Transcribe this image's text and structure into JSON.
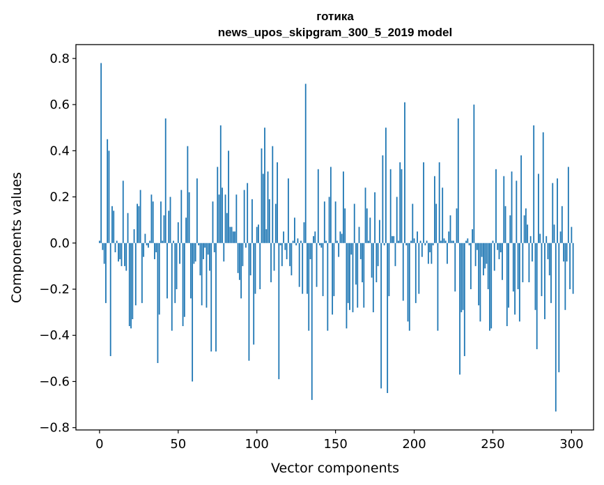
{
  "chart_data": {
    "type": "bar",
    "title_line1": "готика",
    "title_line2": "news_upos_skipgram_300_5_2019 model",
    "xlabel": "Vector components",
    "ylabel": "Components values",
    "xlim": [
      -15,
      314
    ],
    "ylim": [
      -0.81,
      0.86
    ],
    "x_ticks": [
      0,
      50,
      100,
      150,
      200,
      250,
      300
    ],
    "y_ticks": [
      -0.8,
      -0.6,
      -0.4,
      -0.2,
      0.0,
      0.2,
      0.4,
      0.6,
      0.8
    ],
    "x_tick_labels": [
      "0",
      "50",
      "100",
      "150",
      "200",
      "250",
      "300"
    ],
    "y_tick_labels": [
      "−0.8",
      "−0.6",
      "−0.4",
      "−0.2",
      "0.0",
      "0.2",
      "0.4",
      "0.6",
      "0.8"
    ],
    "bar_color": "#1f77b4",
    "grid": false,
    "values": [
      0.01,
      0.78,
      -0.03,
      -0.09,
      -0.26,
      0.45,
      0.4,
      -0.49,
      0.16,
      0.14,
      -0.04,
      0.01,
      -0.08,
      -0.07,
      -0.1,
      0.27,
      -0.1,
      -0.12,
      0.13,
      -0.36,
      -0.37,
      -0.33,
      0.06,
      -0.27,
      0.17,
      0.16,
      0.23,
      -0.26,
      -0.06,
      0.04,
      -0.01,
      -0.02,
      0.01,
      0.21,
      0.18,
      -0.07,
      -0.04,
      -0.52,
      -0.31,
      0.18,
      0.01,
      0.12,
      0.54,
      -0.24,
      0.14,
      0.2,
      -0.38,
      0.01,
      -0.26,
      -0.2,
      0.09,
      -0.09,
      0.23,
      -0.36,
      -0.32,
      0.11,
      0.42,
      0.22,
      -0.24,
      -0.6,
      -0.09,
      -0.08,
      0.28,
      -0.01,
      -0.14,
      -0.27,
      -0.07,
      -0.02,
      -0.28,
      -0.05,
      -0.12,
      -0.47,
      0.18,
      -0.04,
      -0.47,
      0.33,
      0.21,
      0.51,
      0.24,
      -0.08,
      0.21,
      0.13,
      0.4,
      0.07,
      0.07,
      0.05,
      0.05,
      0.21,
      -0.13,
      -0.16,
      -0.24,
      -0.1,
      0.23,
      -0.02,
      0.26,
      -0.51,
      -0.14,
      0.19,
      -0.44,
      -0.22,
      0.07,
      0.08,
      -0.2,
      0.41,
      0.3,
      0.5,
      0.06,
      0.31,
      0.19,
      -0.17,
      0.42,
      -0.12,
      0.17,
      0.35,
      -0.59,
      -0.01,
      -0.1,
      0.05,
      -0.03,
      -0.07,
      0.28,
      -0.1,
      -0.14,
      0.01,
      0.11,
      -0.01,
      0.02,
      -0.19,
      0.01,
      -0.22,
      0.09,
      0.69,
      -0.22,
      -0.38,
      -0.07,
      -0.68,
      0.03,
      0.05,
      -0.19,
      0.32,
      -0.01,
      -0.02,
      -0.23,
      0.18,
      0.01,
      -0.38,
      0.2,
      0.33,
      -0.31,
      -0.23,
      0.18,
      0.01,
      -0.06,
      0.05,
      0.04,
      0.31,
      0.15,
      -0.37,
      -0.26,
      -0.29,
      -0.05,
      -0.3,
      0.17,
      -0.18,
      -0.28,
      0.07,
      -0.07,
      -0.17,
      -0.28,
      0.24,
      0.15,
      0.01,
      0.11,
      -0.15,
      -0.3,
      0.22,
      -0.17,
      -0.1,
      0.1,
      -0.63,
      0.38,
      -0.01,
      0.5,
      -0.65,
      -0.23,
      0.32,
      0.03,
      0.03,
      -0.1,
      0.2,
      0.01,
      0.35,
      0.32,
      -0.25,
      0.61,
      -0.01,
      -0.34,
      -0.38,
      0.01,
      0.17,
      0.02,
      -0.26,
      0.05,
      -0.22,
      0.01,
      -0.06,
      0.35,
      -0.01,
      0.01,
      -0.09,
      -0.04,
      -0.09,
      -0.01,
      0.29,
      0.17,
      -0.38,
      0.35,
      0.01,
      0.24,
      0.02,
      0.01,
      -0.09,
      0.05,
      0.12,
      0.01,
      0.01,
      -0.21,
      0.15,
      0.54,
      -0.57,
      -0.3,
      -0.29,
      -0.49,
      0.01,
      0.02,
      -0.01,
      -0.2,
      0.06,
      0.6,
      -0.1,
      -0.03,
      -0.27,
      -0.34,
      -0.06,
      -0.14,
      -0.11,
      -0.09,
      -0.2,
      -0.38,
      -0.37,
      0.01,
      -0.12,
      0.32,
      -0.03,
      -0.07,
      -0.04,
      -0.16,
      0.29,
      0.16,
      -0.36,
      -0.28,
      0.12,
      0.31,
      -0.21,
      -0.31,
      0.27,
      -0.2,
      -0.34,
      0.38,
      -0.17,
      0.12,
      0.15,
      0.08,
      -0.17,
      0.03,
      -0.08,
      0.51,
      -0.29,
      -0.46,
      0.3,
      0.04,
      -0.23,
      0.48,
      -0.33,
      0.03,
      -0.07,
      -0.14,
      -0.26,
      0.26,
      0.08,
      -0.73,
      0.28,
      -0.56,
      0.05,
      0.16,
      -0.08,
      -0.29,
      -0.08,
      0.33,
      -0.2,
      0.07,
      -0.22
    ]
  }
}
